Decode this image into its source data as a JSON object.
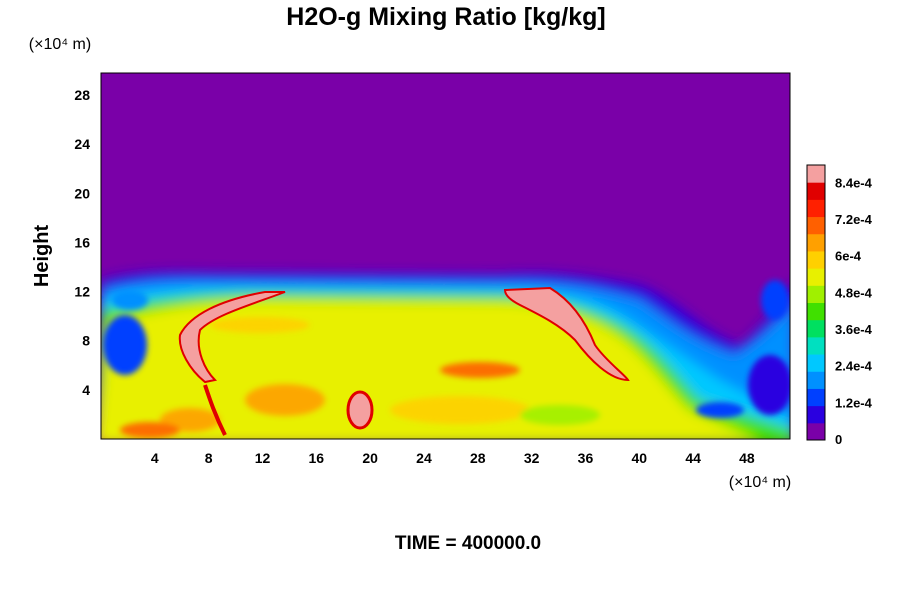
{
  "chart_data": {
    "type": "heatmap",
    "title": "H2O-g Mixing Ratio [kg/kg]",
    "xlabel": "",
    "ylabel": "Height",
    "x_unit": "(×10⁴ m)",
    "y_unit": "(×10⁴ m)",
    "x_ticks": [
      4,
      8,
      12,
      16,
      20,
      24,
      28,
      32,
      36,
      40,
      44,
      48
    ],
    "y_ticks": [
      4,
      8,
      12,
      16,
      20,
      24,
      28
    ],
    "xlim": [
      0,
      51.2
    ],
    "ylim": [
      0,
      29.8
    ],
    "colorbar": {
      "min": 0,
      "max": 0.0009,
      "tick_values": [
        0,
        0.00012,
        0.00024,
        0.00036,
        0.00048,
        0.0006,
        0.00072,
        0.00084
      ],
      "tick_labels": [
        "0",
        "1.2e-4",
        "2.4e-4",
        "3.6e-4",
        "4.8e-4",
        "6e-4",
        "7.2e-4",
        "8.4e-4"
      ],
      "colors": [
        "#7a00a8",
        "#2a00e0",
        "#0040ff",
        "#0090ff",
        "#00c8ff",
        "#00e0c0",
        "#00e060",
        "#40e000",
        "#a0f000",
        "#e8f000",
        "#ffd000",
        "#ffa000",
        "#ff6000",
        "#ff2000",
        "#e00000",
        "#f4a0a0"
      ]
    },
    "field_description_values": {
      "dry_aloft_above_height": 13,
      "moist_layer_top_height": 13
    }
  },
  "footer": {
    "time_label": "TIME = 400000.0"
  }
}
